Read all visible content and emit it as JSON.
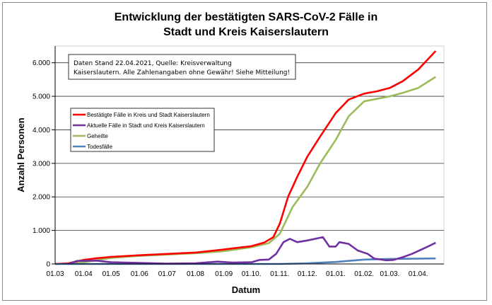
{
  "chart_data": {
    "type": "line",
    "title": "Entwicklung der bestätigten SARS-CoV-2 Fälle in",
    "title_line2": "Stadt und Kreis Kaiserslautern",
    "xlabel": "Datum",
    "ylabel": "Anzahl Personen",
    "ylim": [
      0,
      6500
    ],
    "xlim": [
      "2020-03-01",
      "2021-04-29"
    ],
    "grid": true,
    "legend_placement": "upper-left",
    "annotation": [
      "Daten Stand 22.04.2021, Quelle: Kreisverwaltung",
      "Kaiserslautern. Alle Zahlenangaben ohne Gewähr! Siehe Mitteilung!"
    ],
    "y_ticks": [
      {
        "value": 0,
        "label": "0"
      },
      {
        "value": 1000,
        "label": "1.000"
      },
      {
        "value": 2000,
        "label": "2.000"
      },
      {
        "value": 3000,
        "label": "3.000"
      },
      {
        "value": 4000,
        "label": "4.000"
      },
      {
        "value": 5000,
        "label": "5.000"
      },
      {
        "value": 6000,
        "label": "6.000"
      }
    ],
    "x_ticks": [
      {
        "date": "2020-03-01",
        "label": "01.03"
      },
      {
        "date": "2020-04-01",
        "label": "01.04"
      },
      {
        "date": "2020-05-01",
        "label": "01.05"
      },
      {
        "date": "2020-06-01",
        "label": "01.06"
      },
      {
        "date": "2020-07-01",
        "label": "01.07"
      },
      {
        "date": "2020-08-01",
        "label": "01.08"
      },
      {
        "date": "2020-09-01",
        "label": "01.09"
      },
      {
        "date": "2020-10-01",
        "label": "01.10."
      },
      {
        "date": "2020-11-01",
        "label": "01.11."
      },
      {
        "date": "2020-12-01",
        "label": "01.12."
      },
      {
        "date": "2021-01-01",
        "label": "01.01."
      },
      {
        "date": "2021-02-01",
        "label": "01.02."
      },
      {
        "date": "2021-03-01",
        "label": "01.03."
      },
      {
        "date": "2021-04-01",
        "label": "01.04."
      }
    ],
    "series": [
      {
        "name": "Bestätigte Fälle in Kreis und Stadt Kaiserslautern",
        "color": "#ff0000",
        "x": [
          "2020-03-01",
          "2020-03-15",
          "2020-04-01",
          "2020-04-15",
          "2020-05-01",
          "2020-06-01",
          "2020-07-01",
          "2020-08-01",
          "2020-09-01",
          "2020-09-15",
          "2020-10-01",
          "2020-10-15",
          "2020-10-25",
          "2020-11-01",
          "2020-11-10",
          "2020-11-20",
          "2020-12-01",
          "2020-12-15",
          "2021-01-01",
          "2021-01-15",
          "2021-02-01",
          "2021-02-15",
          "2021-03-01",
          "2021-03-15",
          "2021-04-01",
          "2021-04-20"
        ],
        "y": [
          0,
          20,
          120,
          170,
          210,
          260,
          300,
          340,
          430,
          480,
          530,
          640,
          800,
          1200,
          2000,
          2600,
          3200,
          3800,
          4500,
          4900,
          5080,
          5150,
          5250,
          5450,
          5800,
          6350
        ]
      },
      {
        "name": "Aktuelle Fälle in Stadt und Kreis Kaiserslautern",
        "color": "#7030a0",
        "x": [
          "2020-03-15",
          "2020-03-25",
          "2020-04-15",
          "2020-05-01",
          "2020-06-01",
          "2020-07-01",
          "2020-08-01",
          "2020-08-25",
          "2020-09-10",
          "2020-10-01",
          "2020-10-10",
          "2020-10-20",
          "2020-10-28",
          "2020-11-05",
          "2020-11-12",
          "2020-11-20",
          "2020-12-01",
          "2020-12-18",
          "2020-12-25",
          "2021-01-01",
          "2021-01-05",
          "2021-01-15",
          "2021-01-25",
          "2021-02-05",
          "2021-02-12",
          "2021-02-25",
          "2021-03-05",
          "2021-03-15",
          "2021-03-25",
          "2021-04-10",
          "2021-04-20"
        ],
        "y": [
          0,
          90,
          100,
          50,
          30,
          10,
          20,
          70,
          40,
          50,
          120,
          130,
          300,
          650,
          750,
          650,
          700,
          800,
          520,
          520,
          650,
          600,
          400,
          300,
          160,
          110,
          120,
          200,
          300,
          500,
          630
        ]
      },
      {
        "name": "Geheilte",
        "color": "#9bbb59",
        "x": [
          "2020-03-20",
          "2020-04-01",
          "2020-05-01",
          "2020-06-01",
          "2020-07-01",
          "2020-08-01",
          "2020-09-01",
          "2020-10-01",
          "2020-10-20",
          "2020-11-01",
          "2020-11-15",
          "2020-12-01",
          "2020-12-15",
          "2021-01-01",
          "2021-01-15",
          "2021-02-01",
          "2021-03-01",
          "2021-03-15",
          "2021-04-01",
          "2021-04-20"
        ],
        "y": [
          0,
          50,
          180,
          240,
          280,
          320,
          380,
          500,
          620,
          900,
          1700,
          2300,
          3000,
          3700,
          4400,
          4850,
          5000,
          5100,
          5250,
          5580
        ]
      },
      {
        "name": "Todesfälle",
        "color": "#4f81bd",
        "x": [
          "2020-03-01",
          "2020-11-01",
          "2020-12-01",
          "2021-01-01",
          "2021-02-01",
          "2021-03-01",
          "2021-04-20"
        ],
        "y": [
          0,
          0,
          20,
          60,
          130,
          150,
          165
        ]
      }
    ]
  }
}
